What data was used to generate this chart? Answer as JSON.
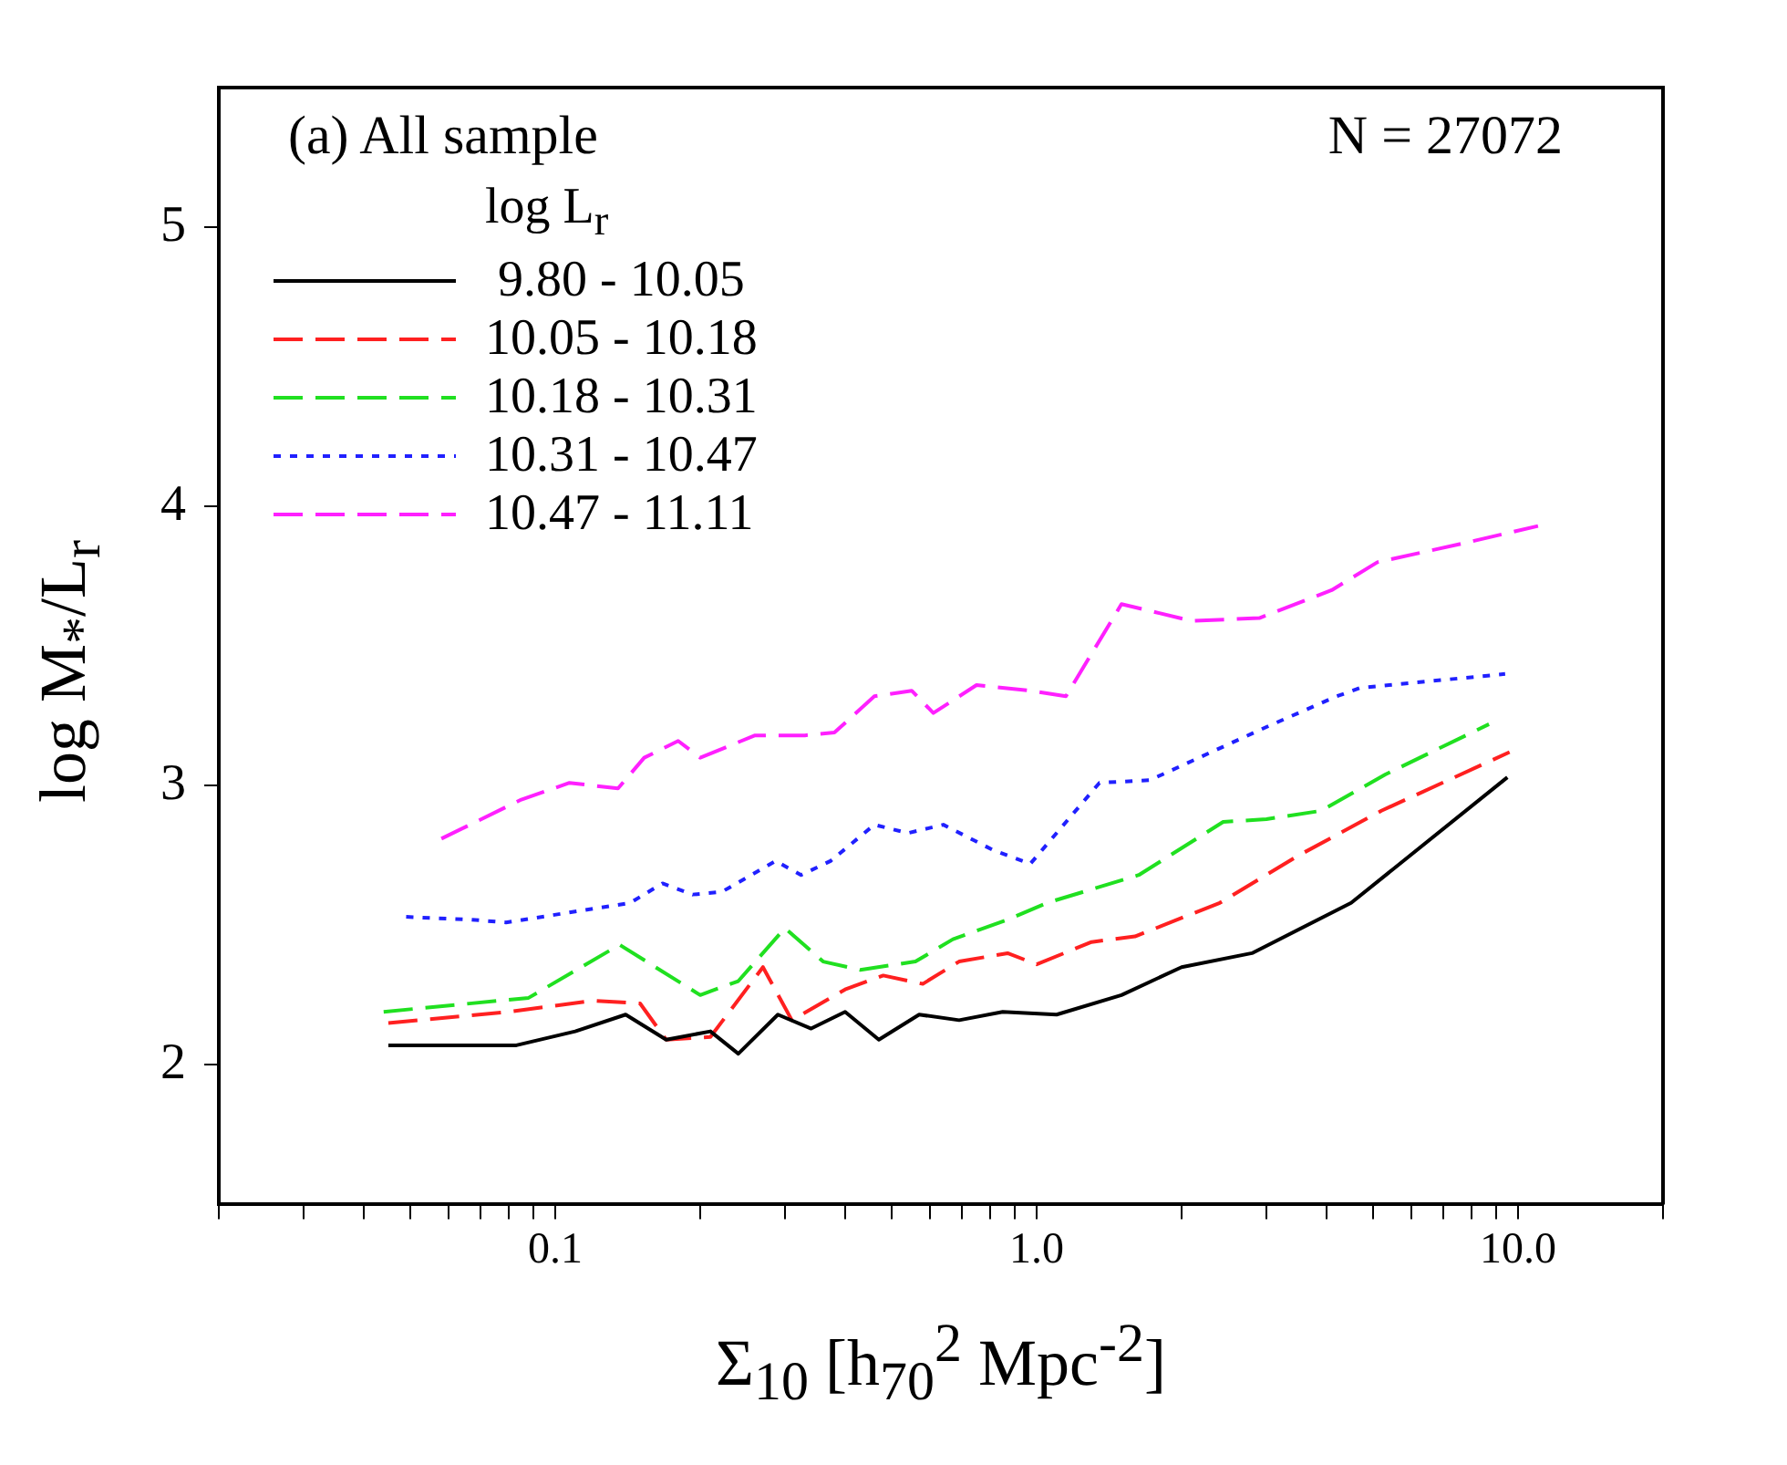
{
  "chart_data": {
    "type": "line",
    "xlabel": "Σ$_{10}$ [h$_{70}$$^{2}$ Mpc$^{-2}$]",
    "ylabel": "log M$_{*}$/L$_{r}$",
    "legend_title": "log L$_{r}$",
    "annotations": [
      "(a) All sample",
      "N = 27072"
    ],
    "log": "x",
    "grid": false,
    "legend": "top left",
    "marker": "none",
    "xlim": [
      0.02,
      20
    ],
    "ylim": [
      1.5,
      5.5
    ],
    "xticks": [
      {
        "value": 0.02,
        "label": null
      },
      {
        "value": 0.03,
        "label": null
      },
      {
        "value": 0.04,
        "label": null
      },
      {
        "value": 0.05,
        "label": null
      },
      {
        "value": 0.06,
        "label": null
      },
      {
        "value": 0.07,
        "label": null
      },
      {
        "value": 0.08,
        "label": null
      },
      {
        "value": 0.09,
        "label": null
      },
      0.1,
      {
        "value": 0.2,
        "label": null
      },
      {
        "value": 0.3,
        "label": null
      },
      {
        "value": 0.4,
        "label": null
      },
      {
        "value": 0.5,
        "label": null
      },
      {
        "value": 0.6,
        "label": null
      },
      {
        "value": 0.7,
        "label": null
      },
      {
        "value": 0.8,
        "label": null
      },
      {
        "value": 0.9,
        "label": null
      },
      {
        "value": 1,
        "label": "1.0"
      },
      {
        "value": 2,
        "label": null
      },
      {
        "value": 3,
        "label": null
      },
      {
        "value": 4,
        "label": null
      },
      {
        "value": 5,
        "label": null
      },
      {
        "value": 6,
        "label": null
      },
      {
        "value": 7,
        "label": null
      },
      {
        "value": 8,
        "label": null
      },
      {
        "value": 9,
        "label": null
      },
      {
        "value": 10,
        "label": "10.0"
      },
      {
        "value": 20,
        "label": null
      }
    ],
    "yticks": [
      2,
      3,
      4,
      5
    ],
    "series": [
      {
        "name": " 9.80 - 10.05",
        "color": "#000000",
        "line_style": "solid",
        "x": [
          0.045,
          0.083,
          0.11,
          0.14,
          0.17,
          0.21,
          0.24,
          0.29,
          0.34,
          0.4,
          0.47,
          0.57,
          0.69,
          0.85,
          1.1,
          1.5,
          2.0,
          2.8,
          4.5,
          9.5
        ],
        "values": [
          2.07,
          2.07,
          2.12,
          2.18,
          2.09,
          2.12,
          2.04,
          2.18,
          2.13,
          2.19,
          2.09,
          2.18,
          2.16,
          2.19,
          2.18,
          2.25,
          2.35,
          2.4,
          2.58,
          3.03
        ]
      },
      {
        "name": "10.05 - 10.18",
        "color": "#ff2020",
        "line_style": "dashed",
        "x": [
          0.045,
          0.08,
          0.12,
          0.15,
          0.17,
          0.21,
          0.27,
          0.31,
          0.4,
          0.48,
          0.58,
          0.69,
          0.87,
          1.0,
          1.3,
          1.6,
          2.4,
          3.5,
          5.2,
          9.6
        ],
        "values": [
          2.15,
          2.19,
          2.23,
          2.22,
          2.09,
          2.1,
          2.35,
          2.16,
          2.27,
          2.32,
          2.29,
          2.37,
          2.4,
          2.36,
          2.44,
          2.46,
          2.58,
          2.75,
          2.91,
          3.12
        ]
      },
      {
        "name": "10.18 - 10.31",
        "color": "#20e020",
        "line_style": "dashed",
        "x": [
          0.044,
          0.088,
          0.136,
          0.2,
          0.24,
          0.3,
          0.36,
          0.43,
          0.56,
          0.67,
          0.87,
          1.05,
          1.63,
          2.44,
          3.0,
          3.9,
          5.3,
          8.7
        ],
        "values": [
          2.19,
          2.24,
          2.43,
          2.25,
          2.3,
          2.49,
          2.37,
          2.34,
          2.37,
          2.45,
          2.52,
          2.58,
          2.68,
          2.87,
          2.88,
          2.91,
          3.04,
          3.22
        ]
      },
      {
        "name": "10.31 - 10.47",
        "color": "#2020ff",
        "line_style": "dotted",
        "x": [
          0.049,
          0.067,
          0.079,
          0.143,
          0.167,
          0.193,
          0.222,
          0.287,
          0.324,
          0.373,
          0.46,
          0.54,
          0.64,
          0.81,
          0.97,
          1.35,
          1.72,
          3.0,
          4.2,
          4.7,
          9.4
        ],
        "values": [
          2.53,
          2.52,
          2.51,
          2.58,
          2.65,
          2.61,
          2.62,
          2.73,
          2.68,
          2.73,
          2.86,
          2.83,
          2.86,
          2.77,
          2.72,
          3.01,
          3.02,
          3.21,
          3.32,
          3.35,
          3.4
        ]
      },
      {
        "name": "10.47 - 11.11",
        "color": "#ff20ff",
        "line_style": "dashed",
        "x": [
          0.058,
          0.085,
          0.107,
          0.135,
          0.153,
          0.18,
          0.2,
          0.26,
          0.33,
          0.38,
          0.46,
          0.55,
          0.61,
          0.75,
          0.97,
          1.15,
          1.5,
          2.1,
          2.9,
          4.1,
          5.1,
          7.8,
          11
        ],
        "values": [
          2.81,
          2.95,
          3.01,
          2.99,
          3.1,
          3.16,
          3.1,
          3.18,
          3.18,
          3.19,
          3.32,
          3.34,
          3.26,
          3.36,
          3.34,
          3.32,
          3.65,
          3.59,
          3.6,
          3.7,
          3.8,
          3.87,
          3.93
        ]
      }
    ]
  }
}
